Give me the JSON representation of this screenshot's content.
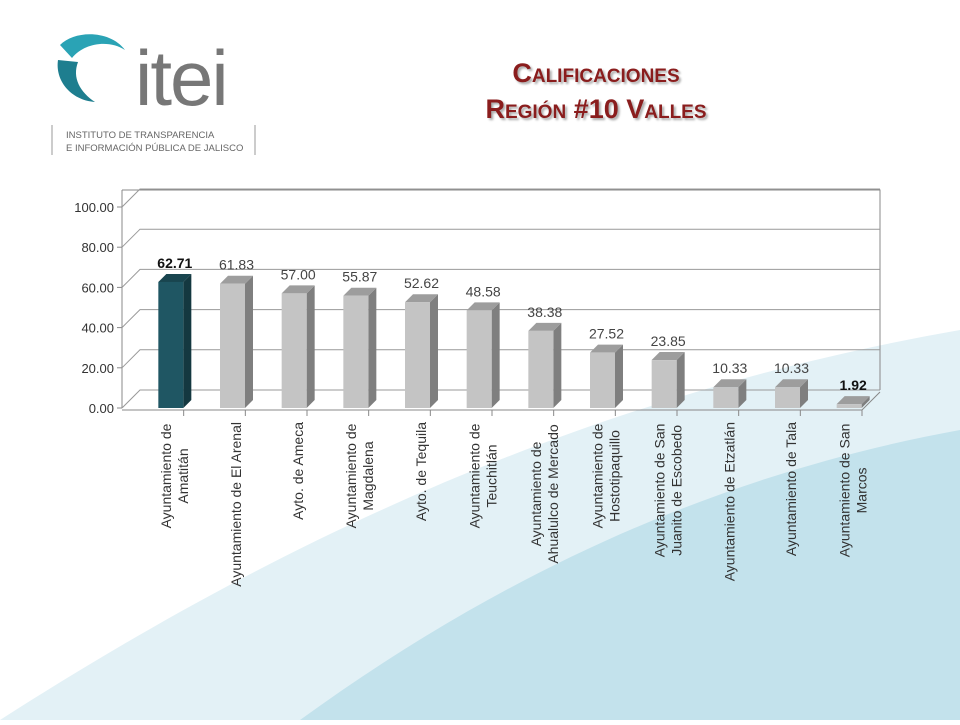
{
  "logo": {
    "mark": "itei",
    "lines": [
      "INSTITUTO DE TRANSPARENCIA",
      "E INFORMACIÓN PÚBLICA DE JALISCO"
    ]
  },
  "chart_data": {
    "type": "bar",
    "title": [
      "Calificaciones",
      "Región #10 Valles"
    ],
    "categories": [
      [
        "Ayuntamiento de",
        "Amatitán"
      ],
      [
        "Ayuntamiento de El Arenal"
      ],
      [
        "Ayto. de Ameca"
      ],
      [
        "Ayuntamiento de",
        "Magdalena"
      ],
      [
        "Ayto. de Tequila"
      ],
      [
        "Ayuntamiento de",
        "Teuchitlán"
      ],
      [
        "Ayuntamiento de",
        "Ahualulco de Mercado"
      ],
      [
        "Ayuntamiento de",
        "Hostotipaquillo"
      ],
      [
        "Ayuntamiento de San",
        "Juanito de Escobedo"
      ],
      [
        "Ayuntamiento de Etzatlán"
      ],
      [
        "Ayuntamiento de Tala"
      ],
      [
        "Ayuntamiento de San",
        "Marcos"
      ]
    ],
    "values": [
      62.71,
      61.83,
      57,
      55.87,
      52.62,
      48.58,
      38.38,
      27.52,
      23.85,
      10.33,
      10.33,
      1.92
    ],
    "value_labels": [
      "62.71",
      "61.83",
      "57.00",
      "55.87",
      "52.62",
      "48.58",
      "38.38",
      "27.52",
      "23.85",
      "10.33",
      "10.33",
      "1.92"
    ],
    "colors": [
      "#1f5663",
      "#c4c4c4",
      "#c4c4c4",
      "#c4c4c4",
      "#c4c4c4",
      "#c4c4c4",
      "#c4c4c4",
      "#c4c4c4",
      "#c4c4c4",
      "#c4c4c4",
      "#c4c4c4",
      "#c4c4c4"
    ],
    "ylim": [
      0,
      100
    ],
    "yticks": [
      {
        "value": 0,
        "label": "0.00"
      },
      {
        "value": 20,
        "label": "20.00"
      },
      {
        "value": 40,
        "label": "40.00"
      },
      {
        "value": 60,
        "label": "60.00"
      },
      {
        "value": 80,
        "label": "80.00"
      },
      {
        "value": 100,
        "label": "100.00"
      }
    ],
    "grid": true
  }
}
